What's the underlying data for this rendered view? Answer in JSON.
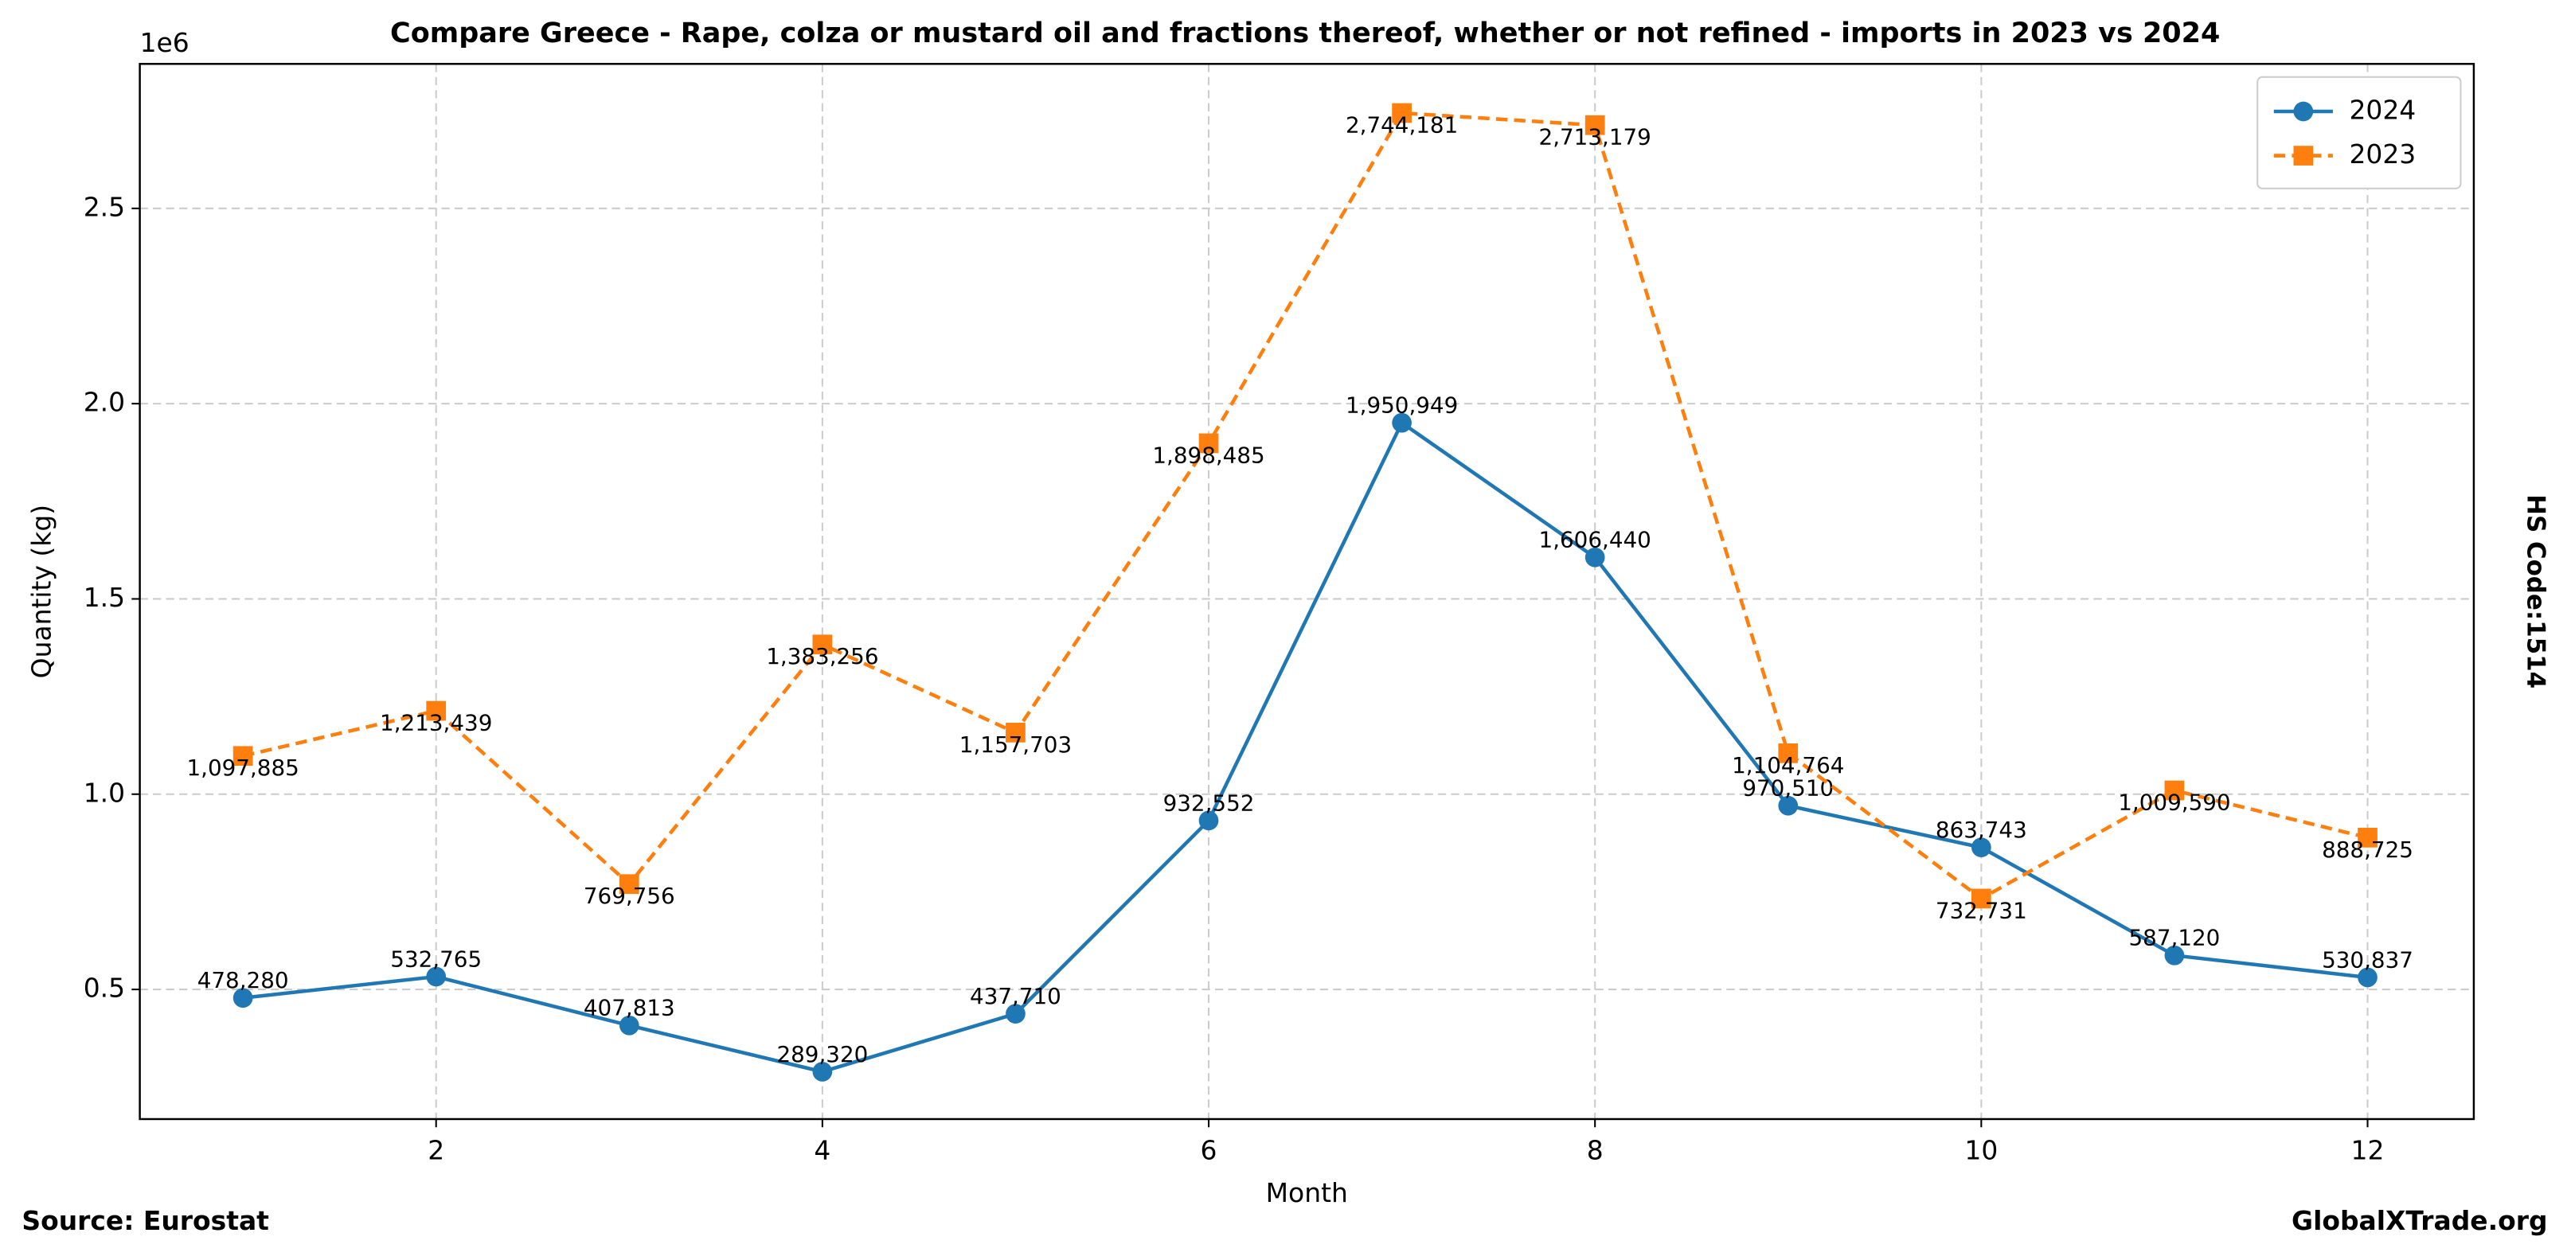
{
  "chart_data": {
    "type": "line",
    "title": "Compare Greece - Rape, colza or mustard oil and fractions thereof, whether or not refined - imports in 2023 vs 2024",
    "x_label": "Month",
    "y_label": "Quantity (kg)",
    "y_offset_label": "1e6",
    "right_label": "HS Code:1514",
    "source": "Source: Eurostat",
    "site": "GlobalXTrade.org",
    "x": [
      1,
      2,
      3,
      4,
      5,
      6,
      7,
      8,
      9,
      10,
      11,
      12
    ],
    "xlim": [
      0.466,
      12.55
    ],
    "xticks": [
      2,
      4,
      6,
      8,
      10,
      12
    ],
    "ylim": [
      168000,
      2870000
    ],
    "yticks": [
      {
        "value": 500000,
        "label": "0.5"
      },
      {
        "value": 1000000,
        "label": "1.0"
      },
      {
        "value": 1500000,
        "label": "1.5"
      },
      {
        "value": 2000000,
        "label": "2.0"
      },
      {
        "value": 2500000,
        "label": "2.5"
      }
    ],
    "grid": true,
    "legend": "upper right",
    "series": [
      {
        "name": "2024",
        "color": "#1f77b4",
        "marker": "circle",
        "dash": "solid",
        "values": [
          478280,
          532765,
          407813,
          289320,
          437710,
          932552,
          1950949,
          1606440,
          970510,
          863743,
          587120,
          530837
        ],
        "value_labels": [
          "478,280",
          "532,765",
          "407,813",
          "289,320",
          "437,710",
          "932,552",
          "1,950,949",
          "1,606,440",
          "970,510",
          "863,743",
          "587,120",
          "530,837"
        ]
      },
      {
        "name": "2023",
        "color": "#ff7f0e",
        "marker": "square",
        "dash": "dashed",
        "values": [
          1097885,
          1213439,
          769756,
          1383256,
          1157703,
          1898485,
          2744181,
          2713179,
          1104764,
          732731,
          1009590,
          888725
        ],
        "value_labels": [
          "1,097,885",
          "1,213,439",
          "769,756",
          "1,383,256",
          "1,157,703",
          "1,898,485",
          "2,744,181",
          "2,713,179",
          "1,104,764",
          "732,731",
          "1,009,590",
          "888,725"
        ]
      }
    ]
  }
}
